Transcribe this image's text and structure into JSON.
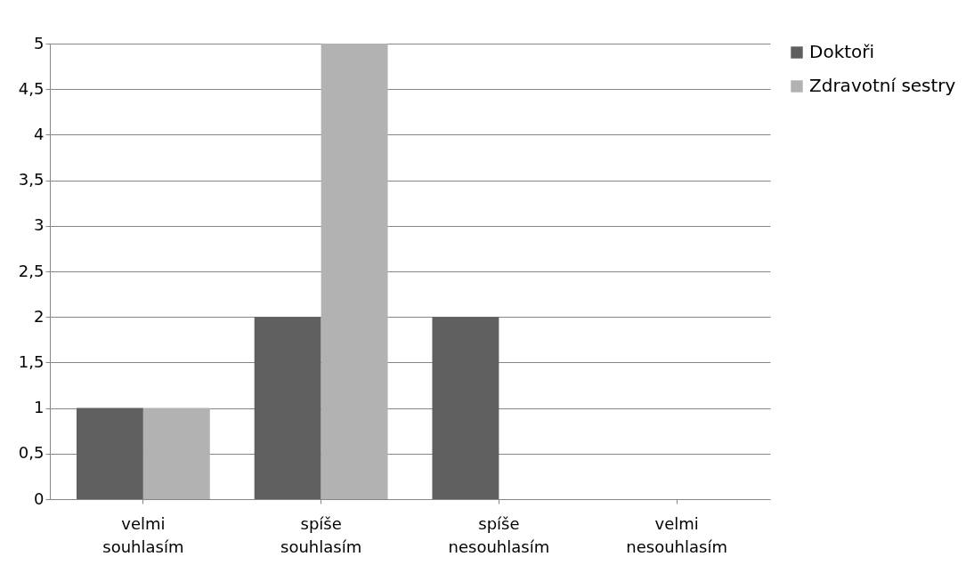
{
  "chart_data": {
    "type": "bar",
    "categories": [
      "velmi souhlasím",
      "spíše souhlasím",
      "spíše nesouhlasím",
      "velmi nesouhlasím"
    ],
    "series": [
      {
        "name": "Doktoři",
        "color": "#5f5f5f",
        "values": [
          1,
          2,
          2,
          0
        ]
      },
      {
        "name": "Zdravotní sestry",
        "color": "#b2b2b2",
        "values": [
          1,
          5,
          0,
          0
        ]
      }
    ],
    "ylim": [
      0,
      5
    ],
    "yticks": [
      0,
      {
        "value": 0.5,
        "label": "0,5"
      },
      1,
      {
        "value": 1.5,
        "label": "1,5"
      },
      2,
      {
        "value": 2.5,
        "label": "2,5"
      },
      3,
      {
        "value": 3.5,
        "label": "3,5"
      },
      4,
      {
        "value": 4.5,
        "label": "4,5"
      },
      5
    ],
    "grid": "y",
    "legend": "right"
  }
}
